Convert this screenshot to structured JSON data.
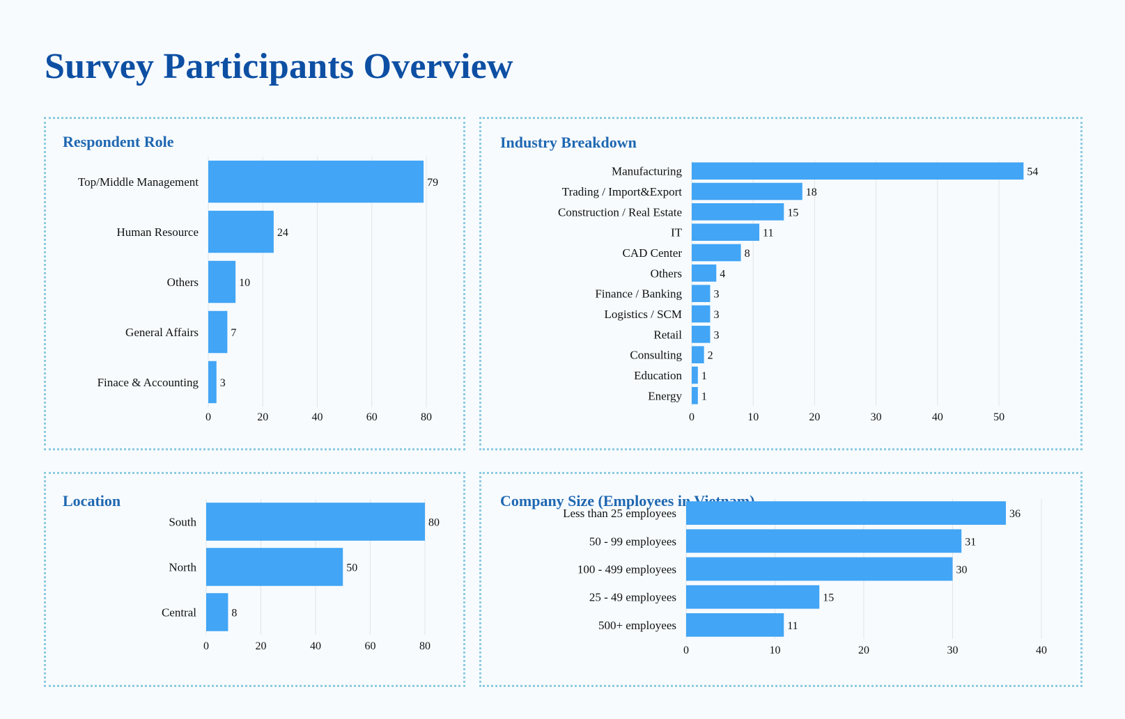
{
  "page": {
    "title": "Survey Participants Overview"
  },
  "colors": {
    "title": "#0d4fa3",
    "panel_title": "#1f67b1",
    "bar": "#42a5f5",
    "panel_border": "#8ccbe0",
    "background": "#f7fbfe"
  },
  "chart_data": [
    {
      "id": "respondent-role",
      "type": "bar",
      "orientation": "horizontal",
      "title": "Respondent Role",
      "categories": [
        "Top/Middle Management",
        "Human Resource",
        "Others",
        "General Affairs",
        "Finace & Accounting"
      ],
      "values": [
        79,
        24,
        10,
        7,
        3
      ],
      "xlim": [
        0,
        80
      ],
      "xticks": [
        0,
        20,
        40,
        60,
        80
      ],
      "grid": true
    },
    {
      "id": "industry-breakdown",
      "type": "bar",
      "orientation": "horizontal",
      "title": "Industry Breakdown",
      "categories": [
        "Manufacturing",
        "Trading / Import&Export",
        "Construction / Real Estate",
        "IT",
        "CAD Center",
        "Others",
        "Finance / Banking",
        "Logistics / SCM",
        "Retail",
        "Consulting",
        "Education",
        "Energy"
      ],
      "values": [
        54,
        18,
        15,
        11,
        8,
        4,
        3,
        3,
        3,
        2,
        1,
        1
      ],
      "xlim": [
        0,
        56
      ],
      "xticks": [
        0,
        10,
        20,
        30,
        40,
        50
      ],
      "grid": true
    },
    {
      "id": "location",
      "type": "bar",
      "orientation": "horizontal",
      "title": "Location",
      "categories": [
        "South",
        "North",
        "Central"
      ],
      "values": [
        80,
        50,
        8
      ],
      "xlim": [
        0,
        80
      ],
      "xticks": [
        0,
        20,
        40,
        60,
        80
      ],
      "grid": true
    },
    {
      "id": "company-size",
      "type": "bar",
      "orientation": "horizontal",
      "title": "Company Size (Employees in Vietnam)",
      "categories": [
        "Less than 25 employees",
        "50 - 99 employees",
        "100 - 499 employees",
        "25 - 49 employees",
        "500+ employees"
      ],
      "values": [
        36,
        31,
        30,
        15,
        11
      ],
      "xlim": [
        0,
        40
      ],
      "xticks": [
        0,
        10,
        20,
        30,
        40
      ],
      "grid": true
    }
  ]
}
